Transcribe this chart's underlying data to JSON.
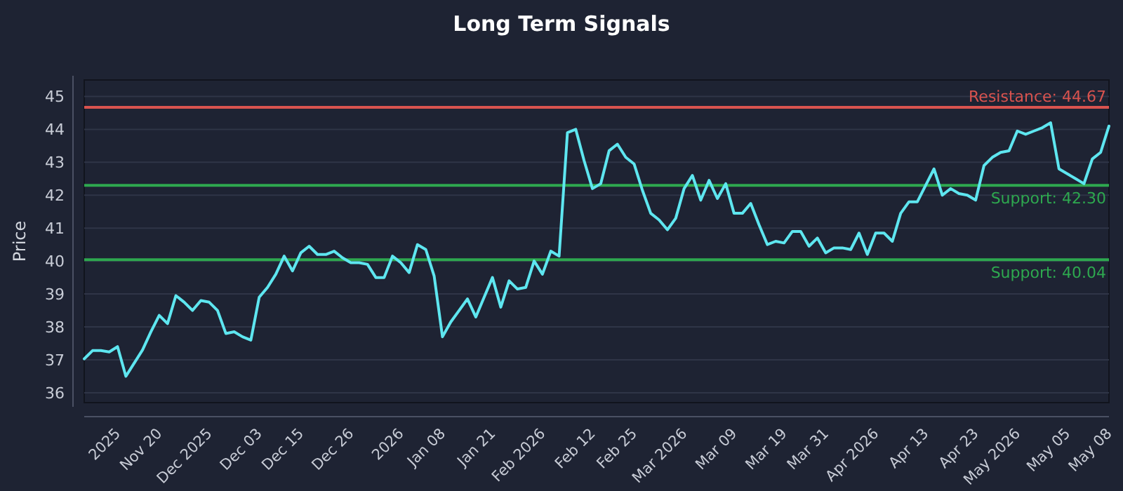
{
  "chart_data": {
    "type": "line",
    "title": "Long Term Signals",
    "ylabel": "Price",
    "categories": [
      null,
      null,
      null,
      null,
      "2025",
      null,
      null,
      null,
      null,
      "Nov 20",
      null,
      null,
      null,
      null,
      null,
      "Dec 2025",
      null,
      null,
      null,
      null,
      null,
      "Dec 03",
      null,
      null,
      null,
      null,
      "Dec 15",
      null,
      null,
      null,
      null,
      null,
      "Dec 26",
      null,
      null,
      null,
      null,
      null,
      "2026",
      null,
      null,
      null,
      null,
      "Jan 08",
      null,
      null,
      null,
      null,
      null,
      "Jan 21",
      null,
      null,
      null,
      null,
      null,
      "Feb 2026",
      null,
      null,
      null,
      null,
      null,
      "Feb 12",
      null,
      null,
      null,
      null,
      "Feb 25",
      null,
      null,
      null,
      null,
      null,
      "Mar 2026",
      null,
      null,
      null,
      null,
      null,
      "Mar 09",
      null,
      null,
      null,
      null,
      null,
      "Mar 19",
      null,
      null,
      null,
      null,
      "Mar 31",
      null,
      null,
      null,
      null,
      null,
      "Apr 2026",
      null,
      null,
      null,
      null,
      null,
      "Apr 13",
      null,
      null,
      null,
      null,
      null,
      "Apr 23",
      null,
      null,
      null,
      null,
      "May 2026",
      null,
      null,
      null,
      null,
      null,
      "May 05",
      null,
      null,
      null,
      null,
      "May 08"
    ],
    "series": [
      {
        "color": "#5ee6f0",
        "values": [
          37.03,
          37.28,
          37.28,
          37.24,
          37.4,
          36.5,
          36.9,
          37.3,
          37.85,
          38.35,
          38.1,
          38.95,
          38.75,
          38.5,
          38.8,
          38.75,
          38.5,
          37.8,
          37.85,
          37.7,
          37.6,
          38.9,
          39.2,
          39.6,
          40.15,
          39.7,
          40.25,
          40.45,
          40.2,
          40.2,
          40.3,
          40.1,
          39.95,
          39.95,
          39.9,
          39.5,
          39.5,
          40.15,
          39.95,
          39.65,
          40.5,
          40.35,
          39.55,
          37.7,
          38.15,
          38.5,
          38.85,
          38.3,
          38.9,
          39.5,
          38.6,
          39.4,
          39.15,
          39.2,
          40.0,
          39.6,
          40.3,
          40.15,
          43.9,
          44.0,
          43.05,
          42.2,
          42.35,
          43.35,
          43.55,
          43.15,
          42.95,
          42.15,
          41.45,
          41.25,
          40.95,
          41.3,
          42.2,
          42.6,
          41.85,
          42.45,
          41.9,
          42.35,
          41.45,
          41.45,
          41.75,
          41.1,
          40.5,
          40.6,
          40.55,
          40.9,
          40.9,
          40.45,
          40.7,
          40.25,
          40.4,
          40.4,
          40.35,
          40.85,
          40.2,
          40.85,
          40.85,
          40.6,
          41.45,
          41.8,
          41.8,
          42.3,
          42.8,
          42.0,
          42.2,
          42.05,
          42.0,
          41.85,
          42.9,
          43.15,
          43.3,
          43.35,
          43.95,
          43.85,
          43.95,
          44.05,
          44.2,
          42.8,
          42.65,
          42.5,
          42.35,
          43.1,
          43.3,
          44.1
        ]
      }
    ],
    "ylim": [
      35.7,
      45.5
    ],
    "yticks": [
      36,
      37,
      38,
      39,
      40,
      41,
      42,
      43,
      44,
      45
    ],
    "grid": "y",
    "line_style": "solid",
    "ref_lines": [
      {
        "axis": "y",
        "value": 44.67,
        "label": "Resistance: 44.67",
        "color": "#d9534f"
      },
      {
        "axis": "y",
        "value": 42.3,
        "label": "Support: 42.30",
        "color": "#2ea84f"
      },
      {
        "axis": "y",
        "value": 40.04,
        "label": "Support: 40.04",
        "color": "#2ea84f"
      }
    ]
  }
}
